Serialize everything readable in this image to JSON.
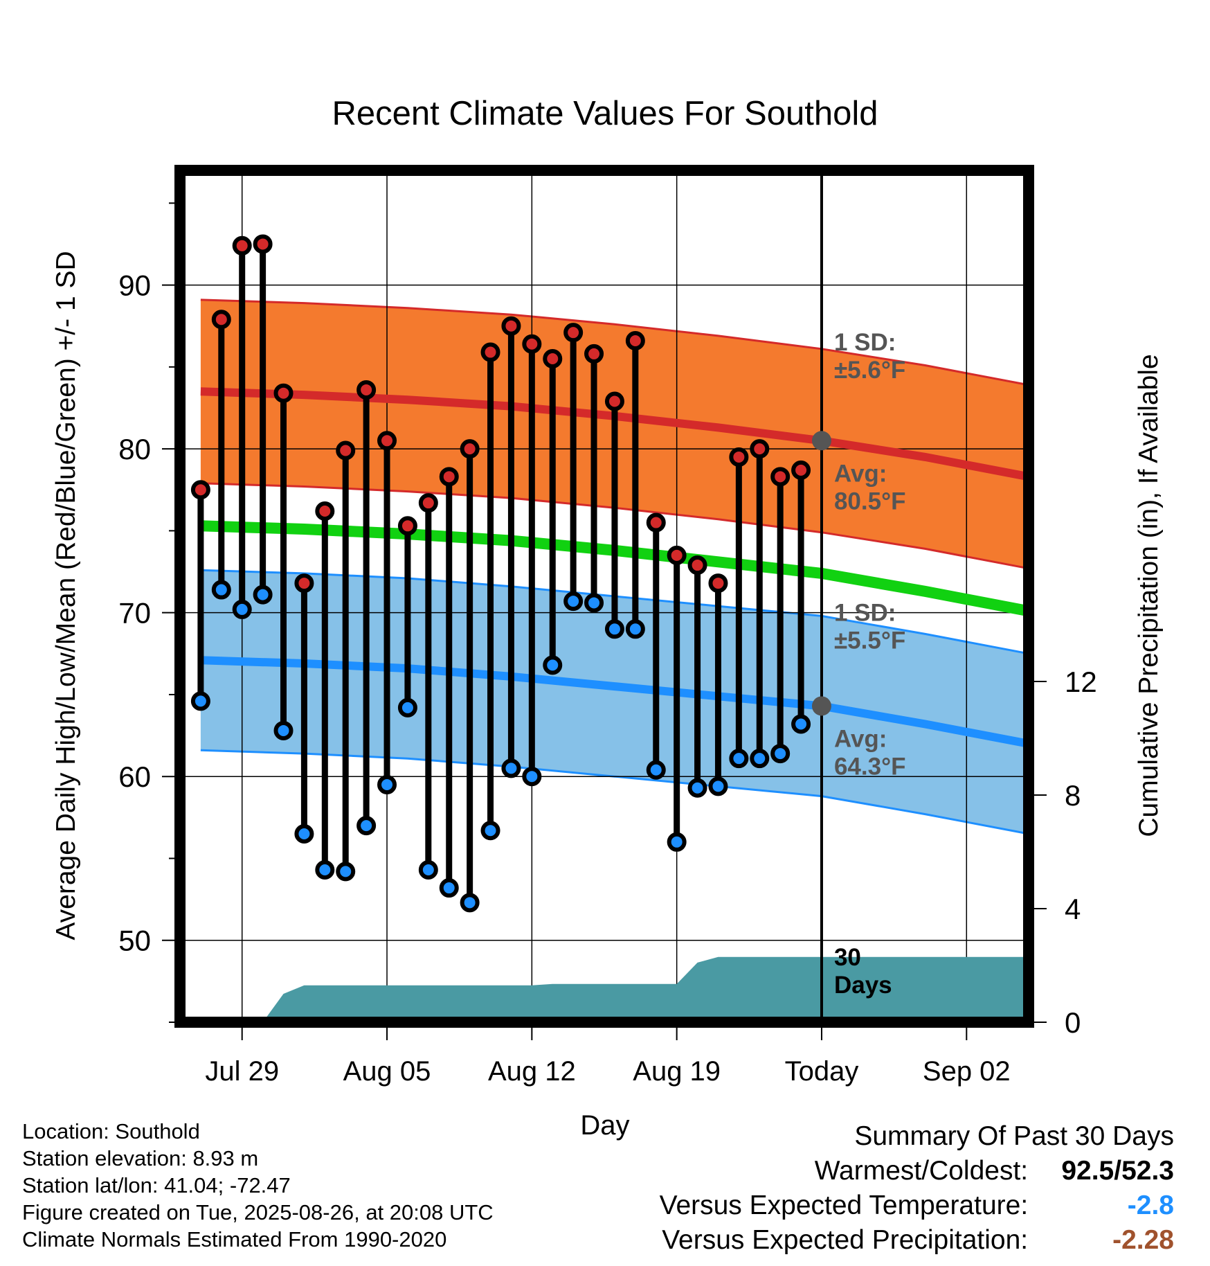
{
  "chart_data": {
    "type": "line",
    "title": "Recent Climate Values For Southold",
    "xlabel": "Day",
    "ylabel": "Average Daily High/Low/Mean (Red/Blue/Green) +/- 1 SD",
    "ylabel_right": "Cumulative Precipitation (in), If Available",
    "x_tick_labels": [
      "Jul 29",
      "Aug 05",
      "Aug 12",
      "Aug 19",
      "Today",
      "Sep 02"
    ],
    "x_tick_days": [
      2,
      9,
      16,
      23,
      30,
      37
    ],
    "x_range_days": [
      -1,
      40
    ],
    "ylim": [
      45,
      97
    ],
    "y_ticks": [
      50,
      60,
      70,
      80,
      90
    ],
    "y2lim": [
      0,
      30
    ],
    "y2_ticks": [
      0,
      4,
      8,
      12
    ],
    "grid": true,
    "today_day": 30,
    "daily_high": [
      77.5,
      87.9,
      92.4,
      92.5,
      83.4,
      71.8,
      76.2,
      79.9,
      83.6,
      80.5,
      75.3,
      76.7,
      78.3,
      80.0,
      85.9,
      87.5,
      86.4,
      85.5,
      87.1,
      85.8,
      82.9,
      86.6,
      75.5,
      73.5,
      72.9,
      71.8,
      79.5,
      80.0,
      78.3,
      78.7
    ],
    "daily_low": [
      64.6,
      71.4,
      70.2,
      71.1,
      62.8,
      56.5,
      54.3,
      54.2,
      57.0,
      59.5,
      64.2,
      54.3,
      53.2,
      52.3,
      56.7,
      60.5,
      60.0,
      66.8,
      70.7,
      70.6,
      69.0,
      69.0,
      60.4,
      56.0,
      59.3,
      59.4,
      61.1,
      61.1,
      61.4,
      63.2
    ],
    "normal_high": {
      "days": [
        0,
        5,
        10,
        15,
        20,
        25,
        30,
        35,
        40
      ],
      "values": [
        83.5,
        83.3,
        83.0,
        82.6,
        82.0,
        81.3,
        80.5,
        79.5,
        78.3
      ],
      "sd": 5.6
    },
    "normal_low": {
      "days": [
        0,
        5,
        10,
        15,
        20,
        25,
        30,
        35,
        40
      ],
      "values": [
        67.1,
        66.9,
        66.6,
        66.1,
        65.5,
        64.9,
        64.3,
        63.2,
        62.0
      ],
      "sd": 5.5
    },
    "normal_mean": {
      "days": [
        0,
        5,
        10,
        15,
        20,
        25,
        30,
        35,
        40
      ],
      "values": [
        75.3,
        75.1,
        74.8,
        74.4,
        73.8,
        73.1,
        72.4,
        71.3,
        70.1
      ]
    },
    "precip_cumulative": {
      "days": [
        0,
        3,
        4,
        5,
        16,
        17,
        23,
        24,
        25,
        40
      ],
      "values": [
        0,
        0,
        1.0,
        1.3,
        1.3,
        1.35,
        1.35,
        2.1,
        2.3,
        2.3
      ]
    },
    "annotations": {
      "high_sd_label": [
        "1 SD:",
        "±5.6°F"
      ],
      "high_avg_label": [
        "Avg:",
        "80.5°F"
      ],
      "low_sd_label": [
        "1 SD:",
        "±5.5°F"
      ],
      "low_avg_label": [
        "Avg:",
        "64.3°F"
      ],
      "precip_period_label": [
        "30",
        "Days"
      ]
    },
    "colors": {
      "high_band": "#f47a2e",
      "high_line": "#d42a2a",
      "low_band": "#86c1e8",
      "low_line": "#1e8fff",
      "mean_line": "#11d111",
      "precip_fill": "#4a9aa3",
      "high_dot": "#d42a2a",
      "low_dot": "#1e8fff",
      "annotation_text": "#555555",
      "today_marker": "#555555"
    }
  },
  "info": {
    "location": "Location: Southold",
    "elevation": "Station elevation: 8.93 m",
    "latlon": "Station lat/lon: 41.04; -72.47",
    "created": "Figure created on Tue, 2025-08-26, at 20:08 UTC",
    "normals": "Climate Normals Estimated From 1990-2020"
  },
  "summary": {
    "title": "Summary Of Past 30 Days",
    "warmest_label": "Warmest/Coldest:",
    "warmest_value": "92.5",
    "slash": "/",
    "coldest_value": "52.3",
    "temp_label": "Versus Expected Temperature:",
    "temp_value": "-2.8",
    "temp_color": "#1e8fff",
    "precip_label": "Versus Expected Precipitation:",
    "precip_value": "-2.28",
    "precip_color": "#a0522d"
  }
}
